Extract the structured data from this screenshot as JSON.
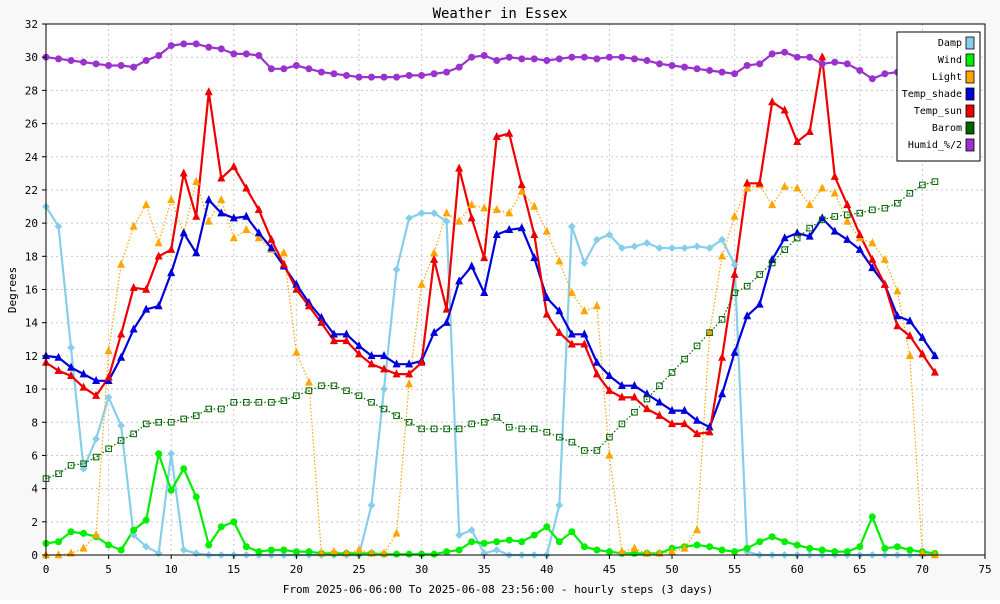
{
  "chart_data": {
    "type": "line",
    "title": "Weather in Essex",
    "xlabel": "From 2025-06-06:00 To 2025-06-08 23:56:00 - hourly steps (3 days)",
    "ylabel": "Degrees",
    "xlim": [
      0,
      75
    ],
    "ylim": [
      0,
      32
    ],
    "x_ticks": [
      0,
      5,
      10,
      15,
      20,
      25,
      30,
      35,
      40,
      45,
      50,
      55,
      60,
      65,
      70,
      75
    ],
    "y_ticks": [
      0,
      2,
      4,
      6,
      8,
      10,
      12,
      14,
      16,
      18,
      20,
      22,
      24,
      26,
      28,
      30,
      32
    ],
    "grid": true,
    "legend_position": "top-right",
    "series": [
      {
        "name": "Damp",
        "color": "#87ceeb",
        "line": "solid",
        "marker": "diamond",
        "x": [
          0,
          1,
          2,
          3,
          4,
          5,
          6,
          7,
          8,
          9,
          10,
          11,
          12,
          13,
          14,
          15,
          16,
          17,
          18,
          19,
          20,
          21,
          22,
          23,
          24,
          25,
          26,
          27,
          28,
          29,
          30,
          31,
          32,
          33,
          34,
          35,
          36,
          37,
          38,
          39,
          40,
          41,
          42,
          43,
          44,
          45,
          46,
          47,
          48,
          49,
          50,
          51,
          52,
          53,
          54,
          55,
          56,
          57,
          58,
          59,
          60,
          61,
          62,
          63,
          64,
          65,
          66,
          67,
          68,
          69,
          70,
          71
        ],
        "values": [
          21.0,
          19.8,
          12.5,
          5.2,
          7.0,
          9.5,
          7.8,
          1.2,
          0.5,
          0.1,
          6.1,
          0.3,
          0.1,
          0,
          0,
          0,
          0,
          0,
          0,
          0,
          0,
          0,
          0,
          0,
          0,
          0,
          3.0,
          10.0,
          17.2,
          20.3,
          20.6,
          20.6,
          20.1,
          1.2,
          1.5,
          0.1,
          0.3,
          0,
          0,
          0,
          0,
          3.0,
          19.8,
          17.6,
          19.0,
          19.3,
          18.5,
          18.6,
          18.8,
          18.5,
          18.5,
          18.5,
          18.6,
          18.5,
          19.0,
          17.5,
          0.2,
          0,
          0,
          0,
          0,
          0,
          0,
          0,
          0,
          0,
          0,
          0,
          0,
          0,
          0,
          0
        ]
      },
      {
        "name": "Wind",
        "color": "#00ee00",
        "line": "solid",
        "marker": "circle",
        "x": [
          0,
          1,
          2,
          3,
          4,
          5,
          6,
          7,
          8,
          9,
          10,
          11,
          12,
          13,
          14,
          15,
          16,
          17,
          18,
          19,
          20,
          21,
          22,
          23,
          24,
          25,
          26,
          27,
          28,
          29,
          30,
          31,
          32,
          33,
          34,
          35,
          36,
          37,
          38,
          39,
          40,
          41,
          42,
          43,
          44,
          45,
          46,
          47,
          48,
          49,
          50,
          51,
          52,
          53,
          54,
          55,
          56,
          57,
          58,
          59,
          60,
          61,
          62,
          63,
          64,
          65,
          66,
          67,
          68,
          69,
          70,
          71
        ],
        "values": [
          0.7,
          0.8,
          1.4,
          1.3,
          1.1,
          0.6,
          0.3,
          1.5,
          2.1,
          6.1,
          3.9,
          5.2,
          3.5,
          0.6,
          1.7,
          2.0,
          0.5,
          0.2,
          0.3,
          0.3,
          0.2,
          0.2,
          0.1,
          0.1,
          0.1,
          0.1,
          0.1,
          0.05,
          0.05,
          0.05,
          0.05,
          0.05,
          0.2,
          0.3,
          0.8,
          0.7,
          0.8,
          0.9,
          0.8,
          1.2,
          1.7,
          0.8,
          1.4,
          0.5,
          0.3,
          0.2,
          0.1,
          0.1,
          0.1,
          0.1,
          0.4,
          0.5,
          0.6,
          0.5,
          0.3,
          0.2,
          0.4,
          0.8,
          1.1,
          0.8,
          0.6,
          0.4,
          0.3,
          0.2,
          0.2,
          0.5,
          2.3,
          0.4,
          0.5,
          0.3,
          0.2,
          0.1
        ]
      },
      {
        "name": "Light",
        "color": "#ffa500",
        "line": "dotted",
        "marker": "triangle",
        "x": [
          0,
          1,
          2,
          3,
          4,
          5,
          6,
          7,
          8,
          9,
          10,
          11,
          12,
          13,
          14,
          15,
          16,
          17,
          18,
          19,
          20,
          21,
          22,
          23,
          24,
          25,
          26,
          27,
          28,
          29,
          30,
          31,
          32,
          33,
          34,
          35,
          36,
          37,
          38,
          39,
          40,
          41,
          42,
          43,
          44,
          45,
          46,
          47,
          48,
          49,
          50,
          51,
          52,
          53,
          54,
          55,
          56,
          57,
          58,
          59,
          60,
          61,
          62,
          63,
          64,
          65,
          66,
          67,
          68,
          69,
          70,
          71
        ],
        "values": [
          0,
          0,
          0.1,
          0.4,
          1.2,
          12.3,
          17.5,
          19.8,
          21.1,
          18.8,
          21.4,
          19.4,
          22.5,
          20.1,
          21.4,
          19.1,
          19.6,
          19.1,
          18.4,
          18.2,
          12.2,
          10.4,
          0.1,
          0.2,
          0.1,
          0.3,
          0.1,
          0.1,
          1.3,
          10.3,
          16.3,
          18.2,
          20.6,
          20.1,
          21.1,
          20.9,
          20.8,
          20.6,
          21.9,
          21.0,
          19.5,
          17.7,
          15.8,
          14.7,
          15.0,
          6.0,
          0.2,
          0.4,
          0.1,
          0.1,
          0.2,
          0.4,
          1.5,
          13.4,
          18.0,
          20.4,
          22.1,
          22.3,
          21.1,
          22.2,
          22.1,
          21.1,
          22.1,
          21.8,
          20.1,
          19.1,
          18.8,
          17.8,
          15.9,
          12.0,
          0.1,
          0
        ]
      },
      {
        "name": "Temp_shade",
        "color": "#0000dd",
        "line": "solid",
        "marker": "triangle",
        "x": [
          0,
          1,
          2,
          3,
          4,
          5,
          6,
          7,
          8,
          9,
          10,
          11,
          12,
          13,
          14,
          15,
          16,
          17,
          18,
          19,
          20,
          21,
          22,
          23,
          24,
          25,
          26,
          27,
          28,
          29,
          30,
          31,
          32,
          33,
          34,
          35,
          36,
          37,
          38,
          39,
          40,
          41,
          42,
          43,
          44,
          45,
          46,
          47,
          48,
          49,
          50,
          51,
          52,
          53,
          54,
          55,
          56,
          57,
          58,
          59,
          60,
          61,
          62,
          63,
          64,
          65,
          66,
          67,
          68,
          69,
          70,
          71
        ],
        "values": [
          12.0,
          11.9,
          11.3,
          10.9,
          10.5,
          10.5,
          11.9,
          13.6,
          14.8,
          15.0,
          17.0,
          19.4,
          18.2,
          21.4,
          20.6,
          20.3,
          20.4,
          19.4,
          18.5,
          17.4,
          16.3,
          15.2,
          14.3,
          13.3,
          13.3,
          12.6,
          12.0,
          12.0,
          11.5,
          11.5,
          11.7,
          13.4,
          14.0,
          16.5,
          17.4,
          15.8,
          19.3,
          19.6,
          19.7,
          17.9,
          15.5,
          14.7,
          13.3,
          13.3,
          11.6,
          10.8,
          10.2,
          10.2,
          9.7,
          9.2,
          8.7,
          8.7,
          8.1,
          7.7,
          9.7,
          12.2,
          14.4,
          15.1,
          17.8,
          19.1,
          19.4,
          19.2,
          20.3,
          19.5,
          19.0,
          18.4,
          17.3,
          16.3,
          14.4,
          14.1,
          13.1,
          12.0
        ]
      },
      {
        "name": "Temp_sun",
        "color": "#ee0000",
        "line": "solid",
        "marker": "triangle",
        "x": [
          0,
          1,
          2,
          3,
          4,
          5,
          6,
          7,
          8,
          9,
          10,
          11,
          12,
          13,
          14,
          15,
          16,
          17,
          18,
          19,
          20,
          21,
          22,
          23,
          24,
          25,
          26,
          27,
          28,
          29,
          30,
          31,
          32,
          33,
          34,
          35,
          36,
          37,
          38,
          39,
          40,
          41,
          42,
          43,
          44,
          45,
          46,
          47,
          48,
          49,
          50,
          51,
          52,
          53,
          54,
          55,
          56,
          57,
          58,
          59,
          60,
          61,
          62,
          63,
          64,
          65,
          66,
          67,
          68,
          69,
          70,
          71
        ],
        "values": [
          11.6,
          11.1,
          10.8,
          10.1,
          9.6,
          10.7,
          13.3,
          16.1,
          16.0,
          18.0,
          18.4,
          23.0,
          20.4,
          27.9,
          22.7,
          23.4,
          22.1,
          20.8,
          19.0,
          17.5,
          16.0,
          15.0,
          14.0,
          12.9,
          12.9,
          12.1,
          11.5,
          11.2,
          10.9,
          10.9,
          11.6,
          17.8,
          14.8,
          23.3,
          20.3,
          17.9,
          25.2,
          25.4,
          22.3,
          19.3,
          14.5,
          13.4,
          12.7,
          12.7,
          10.9,
          9.9,
          9.5,
          9.5,
          8.8,
          8.4,
          7.9,
          7.9,
          7.3,
          7.4,
          11.9,
          16.9,
          22.4,
          22.4,
          27.3,
          26.8,
          24.9,
          25.5,
          30.0,
          22.8,
          21.1,
          19.3,
          17.8,
          16.3,
          13.8,
          13.2,
          12.1,
          11.0
        ]
      },
      {
        "name": "Barom",
        "color": "#006400",
        "line": "dotted",
        "marker": "square",
        "x": [
          0,
          1,
          2,
          3,
          4,
          5,
          6,
          7,
          8,
          9,
          10,
          11,
          12,
          13,
          14,
          15,
          16,
          17,
          18,
          19,
          20,
          21,
          22,
          23,
          24,
          25,
          26,
          27,
          28,
          29,
          30,
          31,
          32,
          33,
          34,
          35,
          36,
          37,
          38,
          39,
          40,
          41,
          42,
          43,
          44,
          45,
          46,
          47,
          48,
          49,
          50,
          51,
          52,
          53,
          54,
          55,
          56,
          57,
          58,
          59,
          60,
          61,
          62,
          63,
          64,
          65,
          66,
          67,
          68,
          69,
          70,
          71
        ],
        "values": [
          4.6,
          4.9,
          5.4,
          5.5,
          5.9,
          6.4,
          6.9,
          7.3,
          7.9,
          8.0,
          8.0,
          8.2,
          8.4,
          8.8,
          8.8,
          9.2,
          9.2,
          9.2,
          9.2,
          9.3,
          9.6,
          9.9,
          10.2,
          10.2,
          9.9,
          9.6,
          9.2,
          8.8,
          8.4,
          8.0,
          7.6,
          7.6,
          7.6,
          7.6,
          7.9,
          8.0,
          8.3,
          7.7,
          7.6,
          7.6,
          7.4,
          7.1,
          6.8,
          6.3,
          6.3,
          7.1,
          7.9,
          8.6,
          9.4,
          10.2,
          11.0,
          11.8,
          12.6,
          13.4,
          14.2,
          15.8,
          16.2,
          16.9,
          17.6,
          18.4,
          19.1,
          19.7,
          20.2,
          20.4,
          20.5,
          20.6,
          20.8,
          20.9,
          21.2,
          21.8,
          22.3,
          22.5
        ]
      },
      {
        "name": "Humid_%/2",
        "color": "#9a32cd",
        "line": "solid",
        "marker": "circle",
        "x": [
          0,
          1,
          2,
          3,
          4,
          5,
          6,
          7,
          8,
          9,
          10,
          11,
          12,
          13,
          14,
          15,
          16,
          17,
          18,
          19,
          20,
          21,
          22,
          23,
          24,
          25,
          26,
          27,
          28,
          29,
          30,
          31,
          32,
          33,
          34,
          35,
          36,
          37,
          38,
          39,
          40,
          41,
          42,
          43,
          44,
          45,
          46,
          47,
          48,
          49,
          50,
          51,
          52,
          53,
          54,
          55,
          56,
          57,
          58,
          59,
          60,
          61,
          62,
          63,
          64,
          65,
          66,
          67,
          68,
          69,
          70,
          71
        ],
        "values": [
          30.0,
          29.9,
          29.8,
          29.7,
          29.6,
          29.5,
          29.5,
          29.4,
          29.8,
          30.1,
          30.7,
          30.8,
          30.8,
          30.6,
          30.5,
          30.2,
          30.2,
          30.1,
          29.3,
          29.3,
          29.5,
          29.3,
          29.1,
          29.0,
          28.9,
          28.8,
          28.8,
          28.8,
          28.8,
          28.9,
          28.9,
          29.0,
          29.1,
          29.4,
          30.0,
          30.1,
          29.8,
          30.0,
          29.9,
          29.9,
          29.8,
          29.9,
          30.0,
          30.0,
          29.9,
          30.0,
          30.0,
          29.9,
          29.8,
          29.6,
          29.5,
          29.4,
          29.3,
          29.2,
          29.1,
          29.0,
          29.5,
          29.6,
          30.2,
          30.3,
          30.0,
          30.0,
          29.6,
          29.7,
          29.6,
          29.2,
          28.7,
          29.0,
          29.1,
          29.2,
          29.2,
          29.2
        ]
      }
    ]
  }
}
